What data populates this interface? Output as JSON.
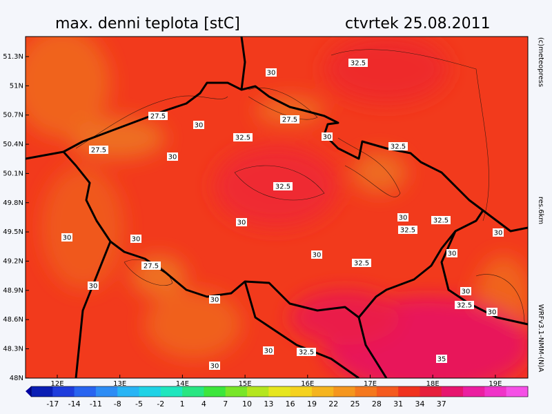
{
  "header": {
    "title": "max. denni teplota [stC]",
    "date": "ctvrtek 25.08.2011"
  },
  "side_notes": [
    "(c)meteopress",
    "res.6km",
    "WRFv3.1-NMM-(N)A"
  ],
  "lat_labels": [
    "51.3N",
    "51N",
    "50.7N",
    "50.4N",
    "50.1N",
    "49.8N",
    "49.5N",
    "49.2N",
    "48.9N",
    "48.6N",
    "48.3N",
    "48N"
  ],
  "lon_labels": [
    "12E",
    "13E",
    "14E",
    "15E",
    "16E",
    "17E",
    "18E",
    "19E"
  ],
  "contour_labels": [
    "30",
    "32.5",
    "27.5",
    "30",
    "27.5",
    "32.5",
    "30",
    "32.5",
    "27.5",
    "30",
    "32.5",
    "30",
    "32.5",
    "30",
    "32.5",
    "30",
    "30",
    "30",
    "30",
    "30",
    "32.5",
    "27.5",
    "30",
    "30",
    "30",
    "32.5",
    "30",
    "30",
    "32.5",
    "35",
    "30"
  ],
  "colorbar": {
    "ticks": [
      -17,
      -14,
      -11,
      -8,
      -5,
      -2,
      1,
      4,
      7,
      10,
      13,
      16,
      19,
      22,
      25,
      28,
      31,
      34,
      37
    ],
    "colors": [
      "#0a1eb4",
      "#1e3cdc",
      "#2864f0",
      "#2d8cf5",
      "#28b4f5",
      "#1ed2e6",
      "#1ee6be",
      "#28e682",
      "#3ce63c",
      "#78e628",
      "#b4e61e",
      "#e6e61e",
      "#f5d21e",
      "#f5b41e",
      "#f5961e",
      "#f5781e",
      "#f55a1e",
      "#f0321e",
      "#e61e3c",
      "#e6146e",
      "#eb1ea0",
      "#f032c8",
      "#f550e6"
    ]
  }
}
